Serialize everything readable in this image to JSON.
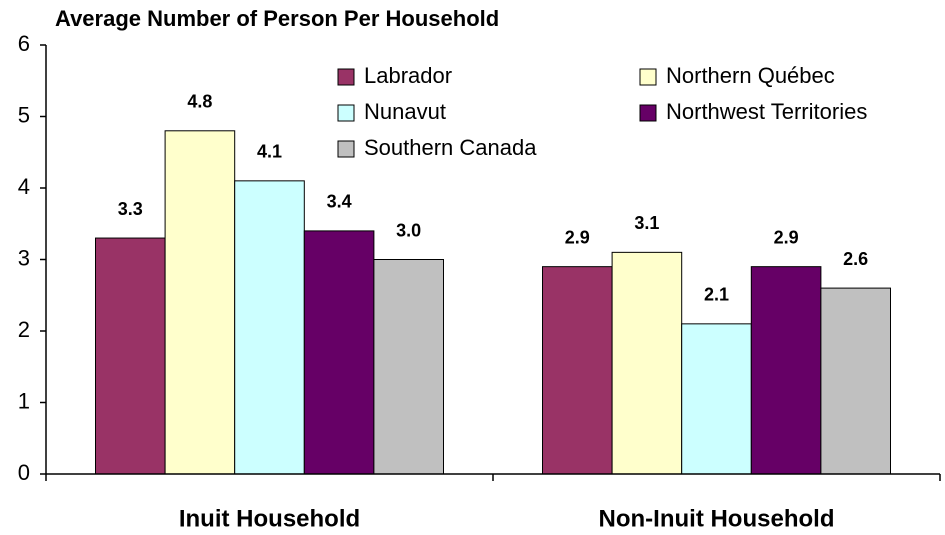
{
  "chart_data": {
    "type": "bar",
    "title": "Average Number of Person Per Household",
    "categories": [
      "Inuit Household",
      "Non-Inuit Household"
    ],
    "series": [
      {
        "name": "Labrador",
        "color": "#993366",
        "values": [
          3.3,
          2.9
        ],
        "value_labels": [
          "3.3",
          "2.9"
        ]
      },
      {
        "name": "Northern Québec",
        "color": "#FFFFCC",
        "values": [
          4.8,
          3.1
        ],
        "value_labels": [
          "4.8",
          "3.1"
        ]
      },
      {
        "name": "Nunavut",
        "color": "#CCFFFF",
        "values": [
          4.1,
          2.1
        ],
        "value_labels": [
          "4.1",
          "2.1"
        ]
      },
      {
        "name": "Northwest Territories",
        "color": "#660066",
        "values": [
          3.4,
          2.9
        ],
        "value_labels": [
          "3.4",
          "2.9"
        ]
      },
      {
        "name": "Southern Canada",
        "color": "#C0C0C0",
        "values": [
          3.0,
          2.6
        ],
        "value_labels": [
          "3.0",
          "2.6"
        ]
      }
    ],
    "ylim": [
      0,
      6
    ],
    "yticks": [
      0,
      1,
      2,
      3,
      4,
      5,
      6
    ],
    "grid": false
  }
}
